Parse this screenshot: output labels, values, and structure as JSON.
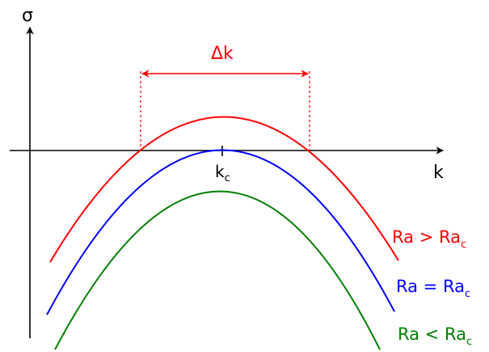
{
  "axes": {
    "y_label": "σ",
    "x_label": "k",
    "kc_label": "k",
    "kc_sub": "c"
  },
  "delta": {
    "label": "Δk",
    "color": "#ff0000"
  },
  "curves": [
    {
      "name": "Ra",
      "sub": "c",
      "relation": ">",
      "color": "#ff0000"
    },
    {
      "name": "Ra",
      "sub": "c",
      "relation": "=",
      "color": "#0000ff"
    },
    {
      "name": "Ra",
      "sub": "c",
      "relation": "<",
      "color": "#008000"
    }
  ],
  "legend": {
    "above": {
      "main": "Ra > Ra",
      "sub": "c"
    },
    "critical": {
      "main": "Ra = Ra",
      "sub": "c"
    },
    "below": {
      "main": "Ra < Ra",
      "sub": "c"
    }
  }
}
